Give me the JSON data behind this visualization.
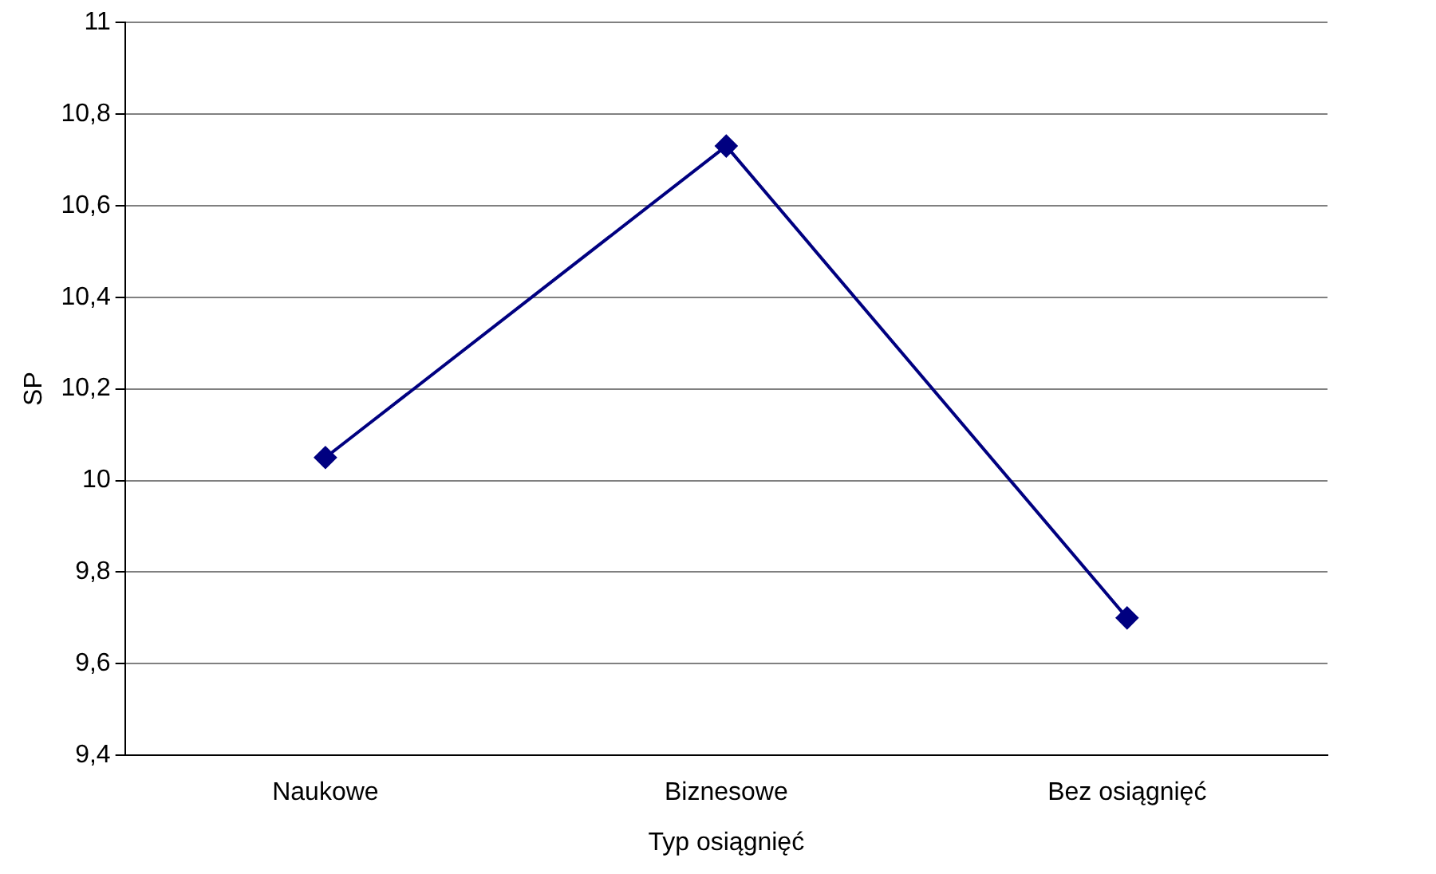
{
  "chart_data": {
    "type": "line",
    "xlabel": "Typ osiągnięć",
    "ylabel": "SP",
    "categories": [
      "Naukowe",
      "Biznesowe",
      "Bez osiągnięć"
    ],
    "series": [
      {
        "color": "#000080",
        "values": [
          10.05,
          10.73,
          9.7
        ]
      }
    ],
    "ylim": [
      9.4,
      11
    ],
    "yticks": [
      {
        "value": 9.4,
        "label": "9,4"
      },
      {
        "value": 9.6,
        "label": "9,6"
      },
      {
        "value": 9.8,
        "label": "9,8"
      },
      10,
      {
        "value": 10.2,
        "label": "10,2"
      },
      {
        "value": 10.4,
        "label": "10,4"
      },
      {
        "value": 10.6,
        "label": "10,6"
      },
      {
        "value": 10.8,
        "label": "10,8"
      },
      11
    ],
    "grid": "y",
    "legend": false,
    "marker": "diamond",
    "line_style": "solid"
  }
}
